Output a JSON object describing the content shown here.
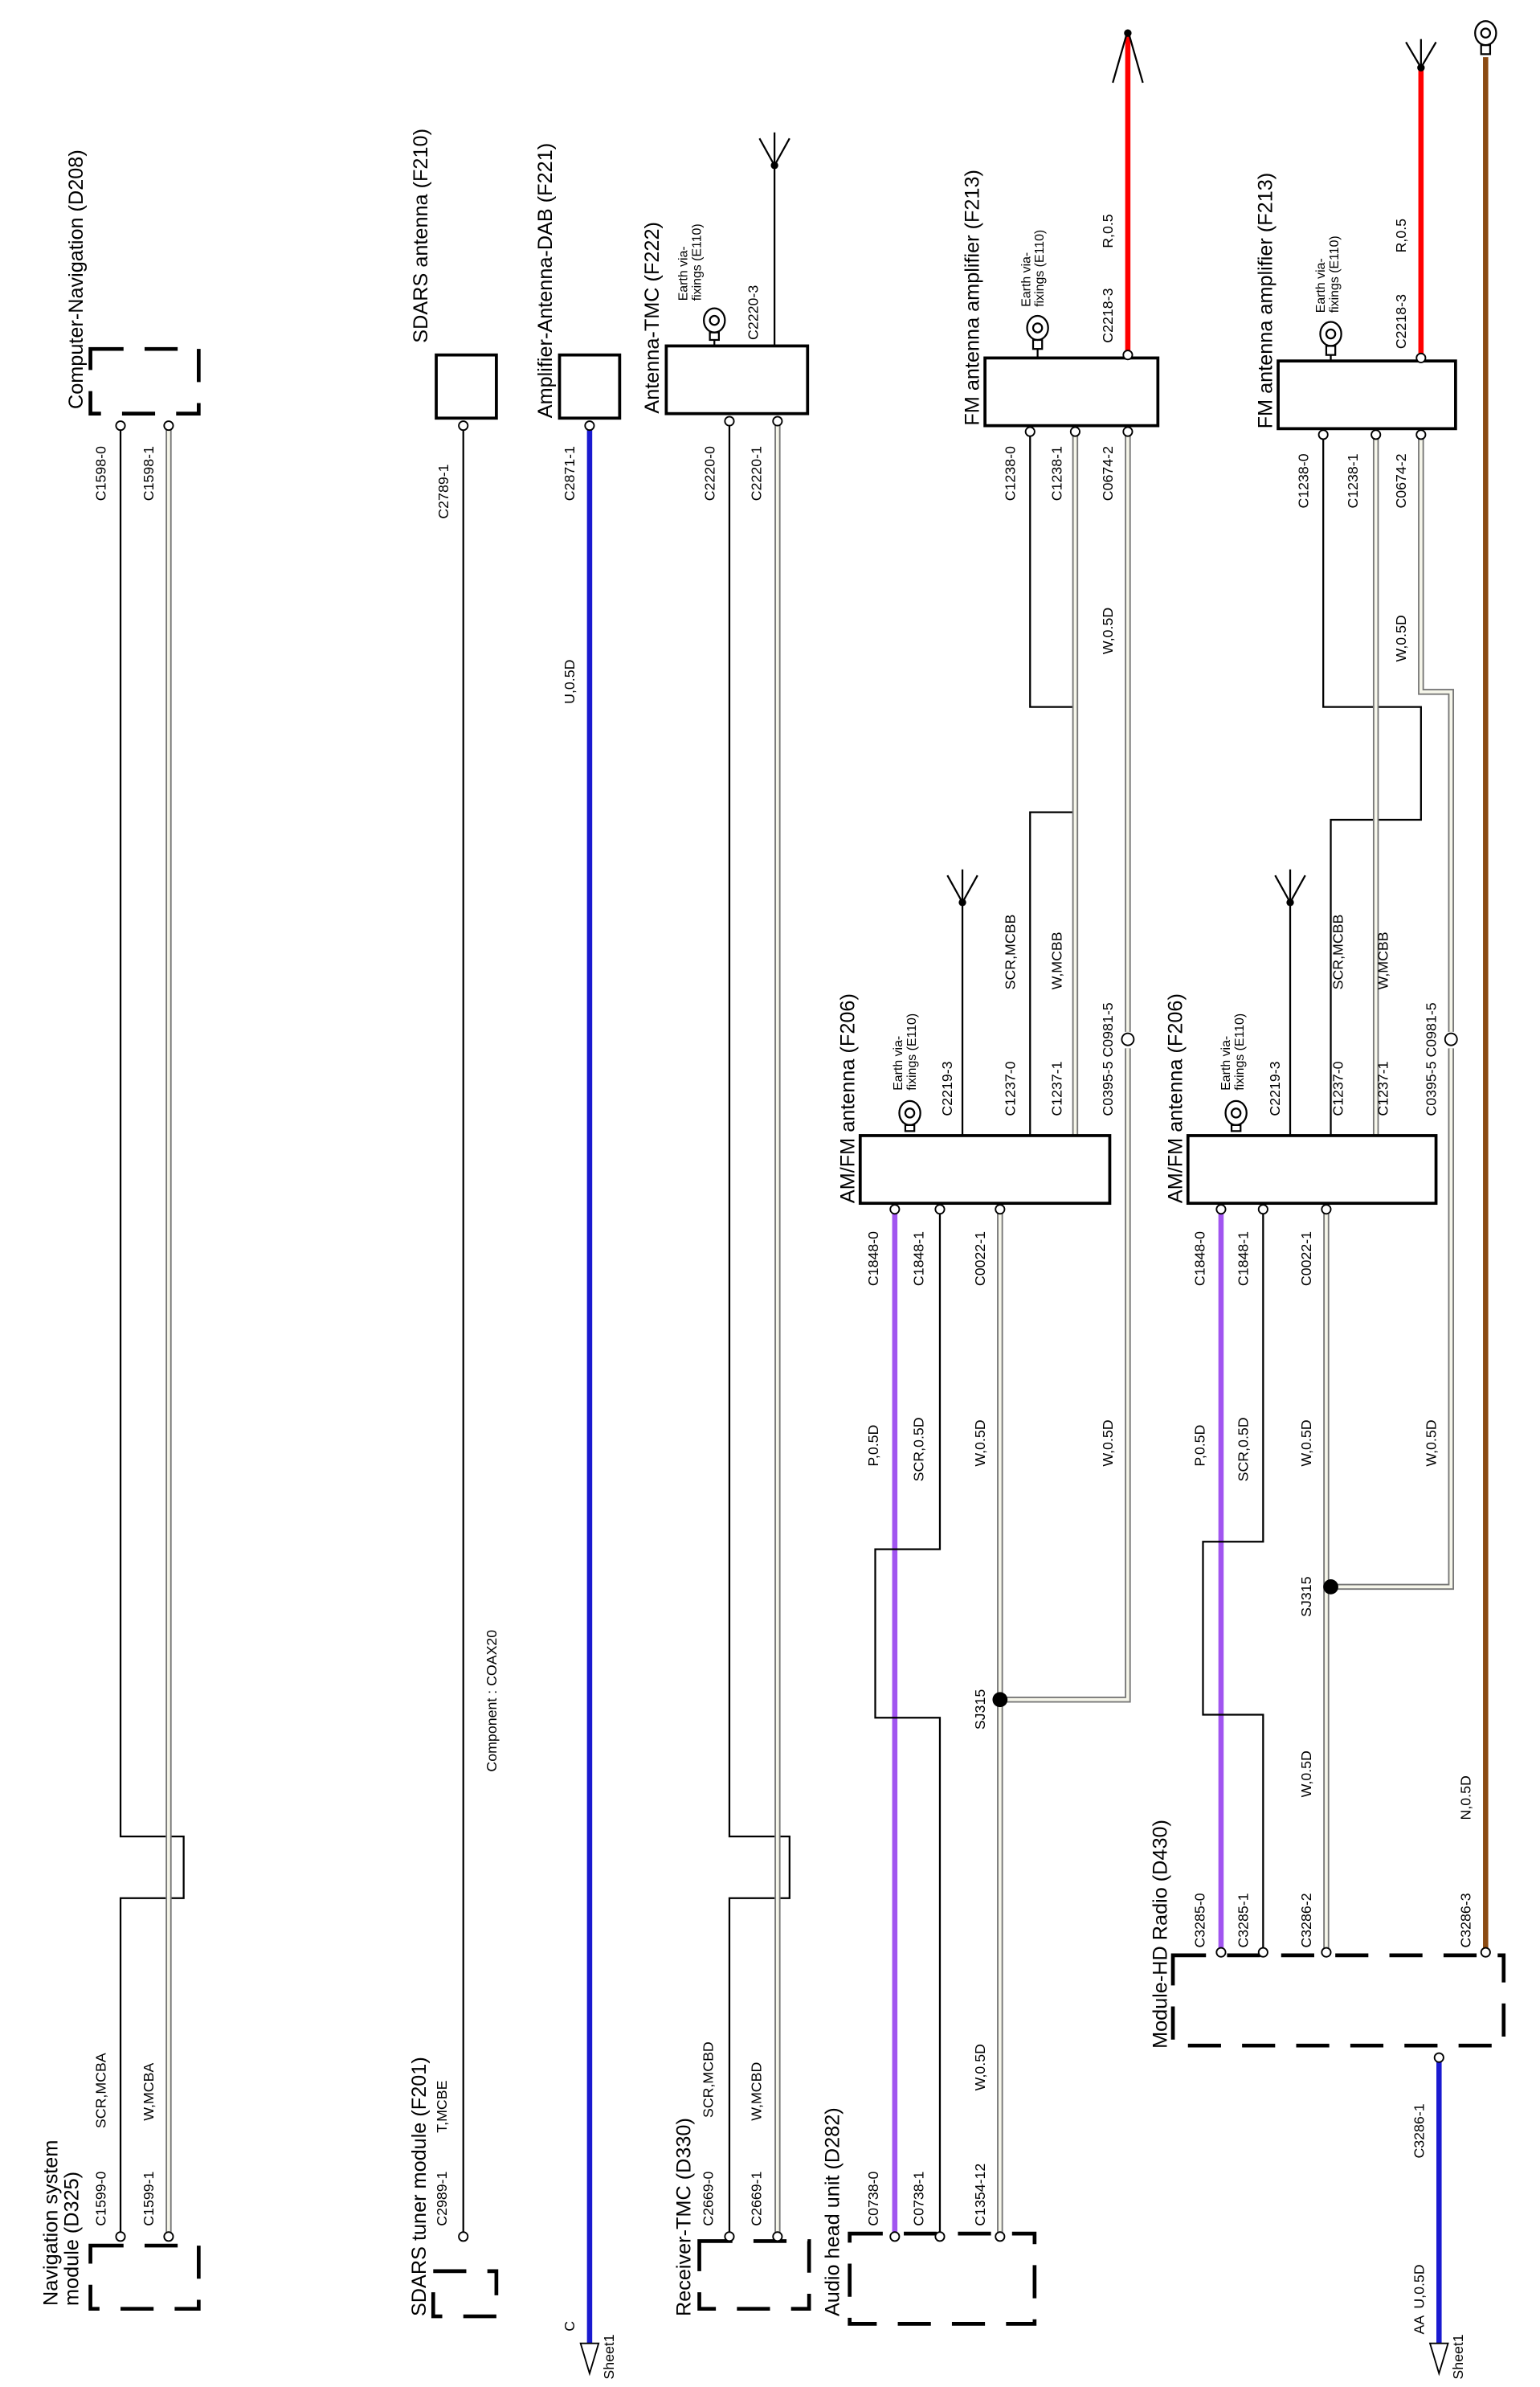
{
  "colors": {
    "black": "#000000",
    "white_wire": "#f6f6ea",
    "purple": "#a155f0",
    "blue": "#1a1ad0",
    "red": "#ff0000",
    "brown": "#8b4a12"
  },
  "components": {
    "nav_module": {
      "title_1": "Navigation system",
      "title_2": "module (D325)"
    },
    "computer_nav": {
      "title": "Computer-Navigation (D208)"
    },
    "sdars_antenna": {
      "title": "SDARS antenna (F210)"
    },
    "sdars_tuner": {
      "title": "SDARS tuner module (F201)"
    },
    "amp_dab": {
      "title": "Amplifier-Antenna-DAB (F221)"
    },
    "antenna_tmc": {
      "title": "Antenna-TMC (F222)"
    },
    "receiver_tmc": {
      "title": "Receiver-TMC (D330)"
    },
    "audio_head": {
      "title": "Audio head unit (D282)"
    },
    "amfm_1": {
      "title": "AM/FM antenna (F206)"
    },
    "amfm_2": {
      "title": "AM/FM antenna (F206)"
    },
    "fm_amp_1": {
      "title": "FM antenna amplifier (F213)"
    },
    "fm_amp_2": {
      "title": "FM antenna amplifier (F213)"
    },
    "hd_radio": {
      "title": "Module-HD Radio (D430)"
    }
  },
  "earth": {
    "line1": "Earth via-",
    "line2": "fixings (E110)"
  },
  "component_note": "Component : COAX20",
  "connectors": {
    "c1599_0": "C1599-0",
    "c1599_1": "C1599-1",
    "c1598_0": "C1598-0",
    "c1598_1": "C1598-1",
    "c2789_1": "C2789-1",
    "c2989_1": "C2989-1",
    "c2871_1": "C2871-1",
    "c2220_0": "C2220-0",
    "c2220_1": "C2220-1",
    "c2220_3": "C2220-3",
    "c2669_0": "C2669-0",
    "c2669_1": "C2669-1",
    "c0738_0": "C0738-0",
    "c0738_1": "C0738-1",
    "c1354_12": "C1354-12",
    "c1848_0": "C1848-0",
    "c1848_1": "C1848-1",
    "c0022_1": "C0022-1",
    "c2219_3": "C2219-3",
    "c1237_0": "C1237-0",
    "c1237_1": "C1237-1",
    "c0395_c0981": "C0395-5 C0981-5",
    "c1238_0": "C1238-0",
    "c1238_1": "C1238-1",
    "c0674_2": "C0674-2",
    "c2218_3": "C2218-3",
    "c3285_0": "C3285-0",
    "c3285_1": "C3285-1",
    "c3286_2": "C3286-2",
    "c3286_3": "C3286-3",
    "c3286_1": "C3286-1"
  },
  "wires": {
    "scr_mcba": "SCR,MCBA",
    "w_mcba": "W,MCBA",
    "t_mcbe": "T,MCBE",
    "u_05d": "U,0.5D",
    "scr_mcbd": "SCR,MCBD",
    "w_mcbd": "W,MCBD",
    "scr_mcbb": "SCR,MCBB",
    "w_mcbb": "W,MCBB",
    "w_05d": "W,0.5D",
    "p_05d": "P,0.5D",
    "scr_05d": "SCR,0.5D",
    "r_05": "R,0.5",
    "n_05d": "N,0.5D"
  },
  "splices": {
    "sj315": "SJ315"
  },
  "offpage": {
    "c": "C",
    "aa": "AA",
    "sheet": "Sheet1"
  }
}
